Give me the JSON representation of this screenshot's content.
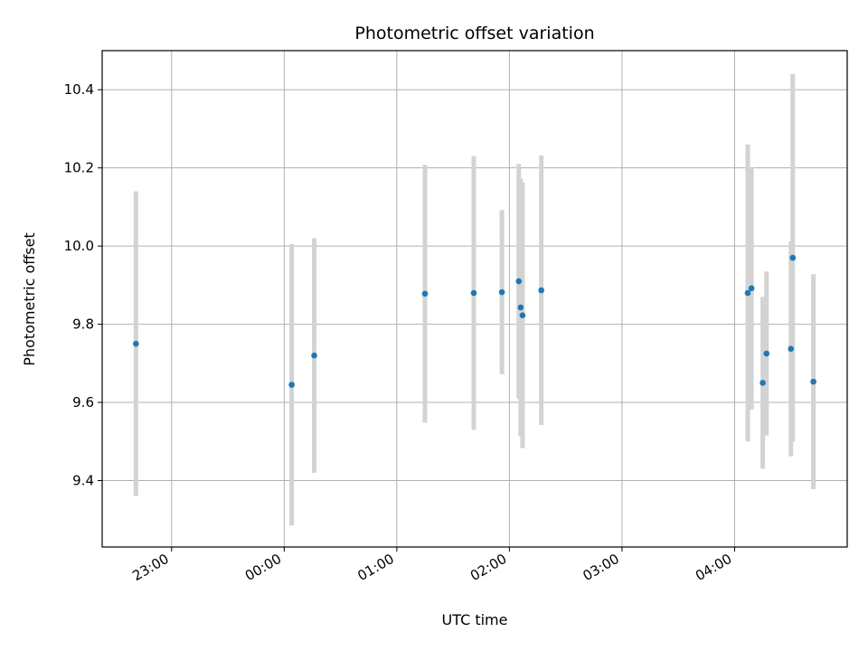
{
  "chart_data": {
    "type": "scatter",
    "title": "Photometric offset variation",
    "xlabel": "UTC time",
    "ylabel": "Photometric offset",
    "x_ticks": [
      "23:00",
      "00:00",
      "01:00",
      "02:00",
      "03:00",
      "04:00"
    ],
    "y_ticks": [
      "9.4",
      "9.6",
      "9.8",
      "10.0",
      "10.2",
      "10.4"
    ],
    "xlim": [
      "22:23",
      "05:00"
    ],
    "ylim": [
      9.23,
      10.5
    ],
    "grid": true,
    "points": [
      {
        "x": "22:41",
        "y": 9.75,
        "yerr": 0.39
      },
      {
        "x": "00:04",
        "y": 9.645,
        "yerr": 0.36
      },
      {
        "x": "00:16",
        "y": 9.72,
        "yerr": 0.3
      },
      {
        "x": "01:15",
        "y": 9.878,
        "yerr": 0.33
      },
      {
        "x": "01:41",
        "y": 9.88,
        "yerr": 0.35
      },
      {
        "x": "01:56",
        "y": 9.882,
        "yerr": 0.21
      },
      {
        "x": "02:05",
        "y": 9.91,
        "yerr": 0.3
      },
      {
        "x": "02:06",
        "y": 9.843,
        "yerr": 0.33
      },
      {
        "x": "02:07",
        "y": 9.823,
        "yerr": 0.34
      },
      {
        "x": "02:17",
        "y": 9.887,
        "yerr": 0.345
      },
      {
        "x": "04:07",
        "y": 9.88,
        "yerr": 0.38
      },
      {
        "x": "04:09",
        "y": 9.892,
        "yerr": 0.31
      },
      {
        "x": "04:15",
        "y": 9.65,
        "yerr": 0.22
      },
      {
        "x": "04:17",
        "y": 9.725,
        "yerr": 0.21
      },
      {
        "x": "04:30",
        "y": 9.737,
        "yerr": 0.275
      },
      {
        "x": "04:31",
        "y": 9.97,
        "yerr": 0.47
      },
      {
        "x": "04:42",
        "y": 9.653,
        "yerr": 0.275
      }
    ],
    "colors": {
      "point": "#1f77b4",
      "errorbar": "#d3d3d3",
      "grid": "#b0b0b0",
      "axes": "#000000"
    }
  }
}
